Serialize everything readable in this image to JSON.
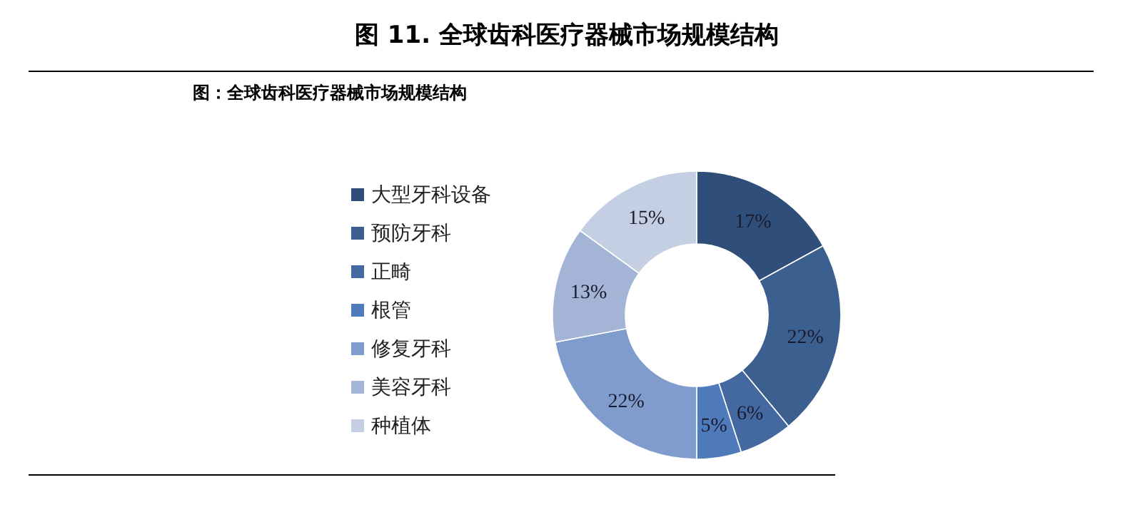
{
  "chart_data": {
    "type": "donut",
    "title": "图 11. 全球齿科医疗器械市场规模结构",
    "subtitle": "图：全球齿科医疗器械市场规模结构",
    "categories": [
      "大型牙科设备",
      "预防牙科",
      "正畸",
      "根管",
      "修复牙科",
      "美容牙科",
      "种植体"
    ],
    "values": [
      17,
      22,
      6,
      5,
      22,
      13,
      15
    ],
    "colors": [
      "#2f4f7a",
      "#3b5f8f",
      "#4469a0",
      "#4f7bba",
      "#7f9ccc",
      "#a3b4d6",
      "#c5cfe3"
    ],
    "value_labels": [
      "17%",
      "22%",
      "6%",
      "5%",
      "22%",
      "13%",
      "15%"
    ],
    "legend": "left"
  }
}
